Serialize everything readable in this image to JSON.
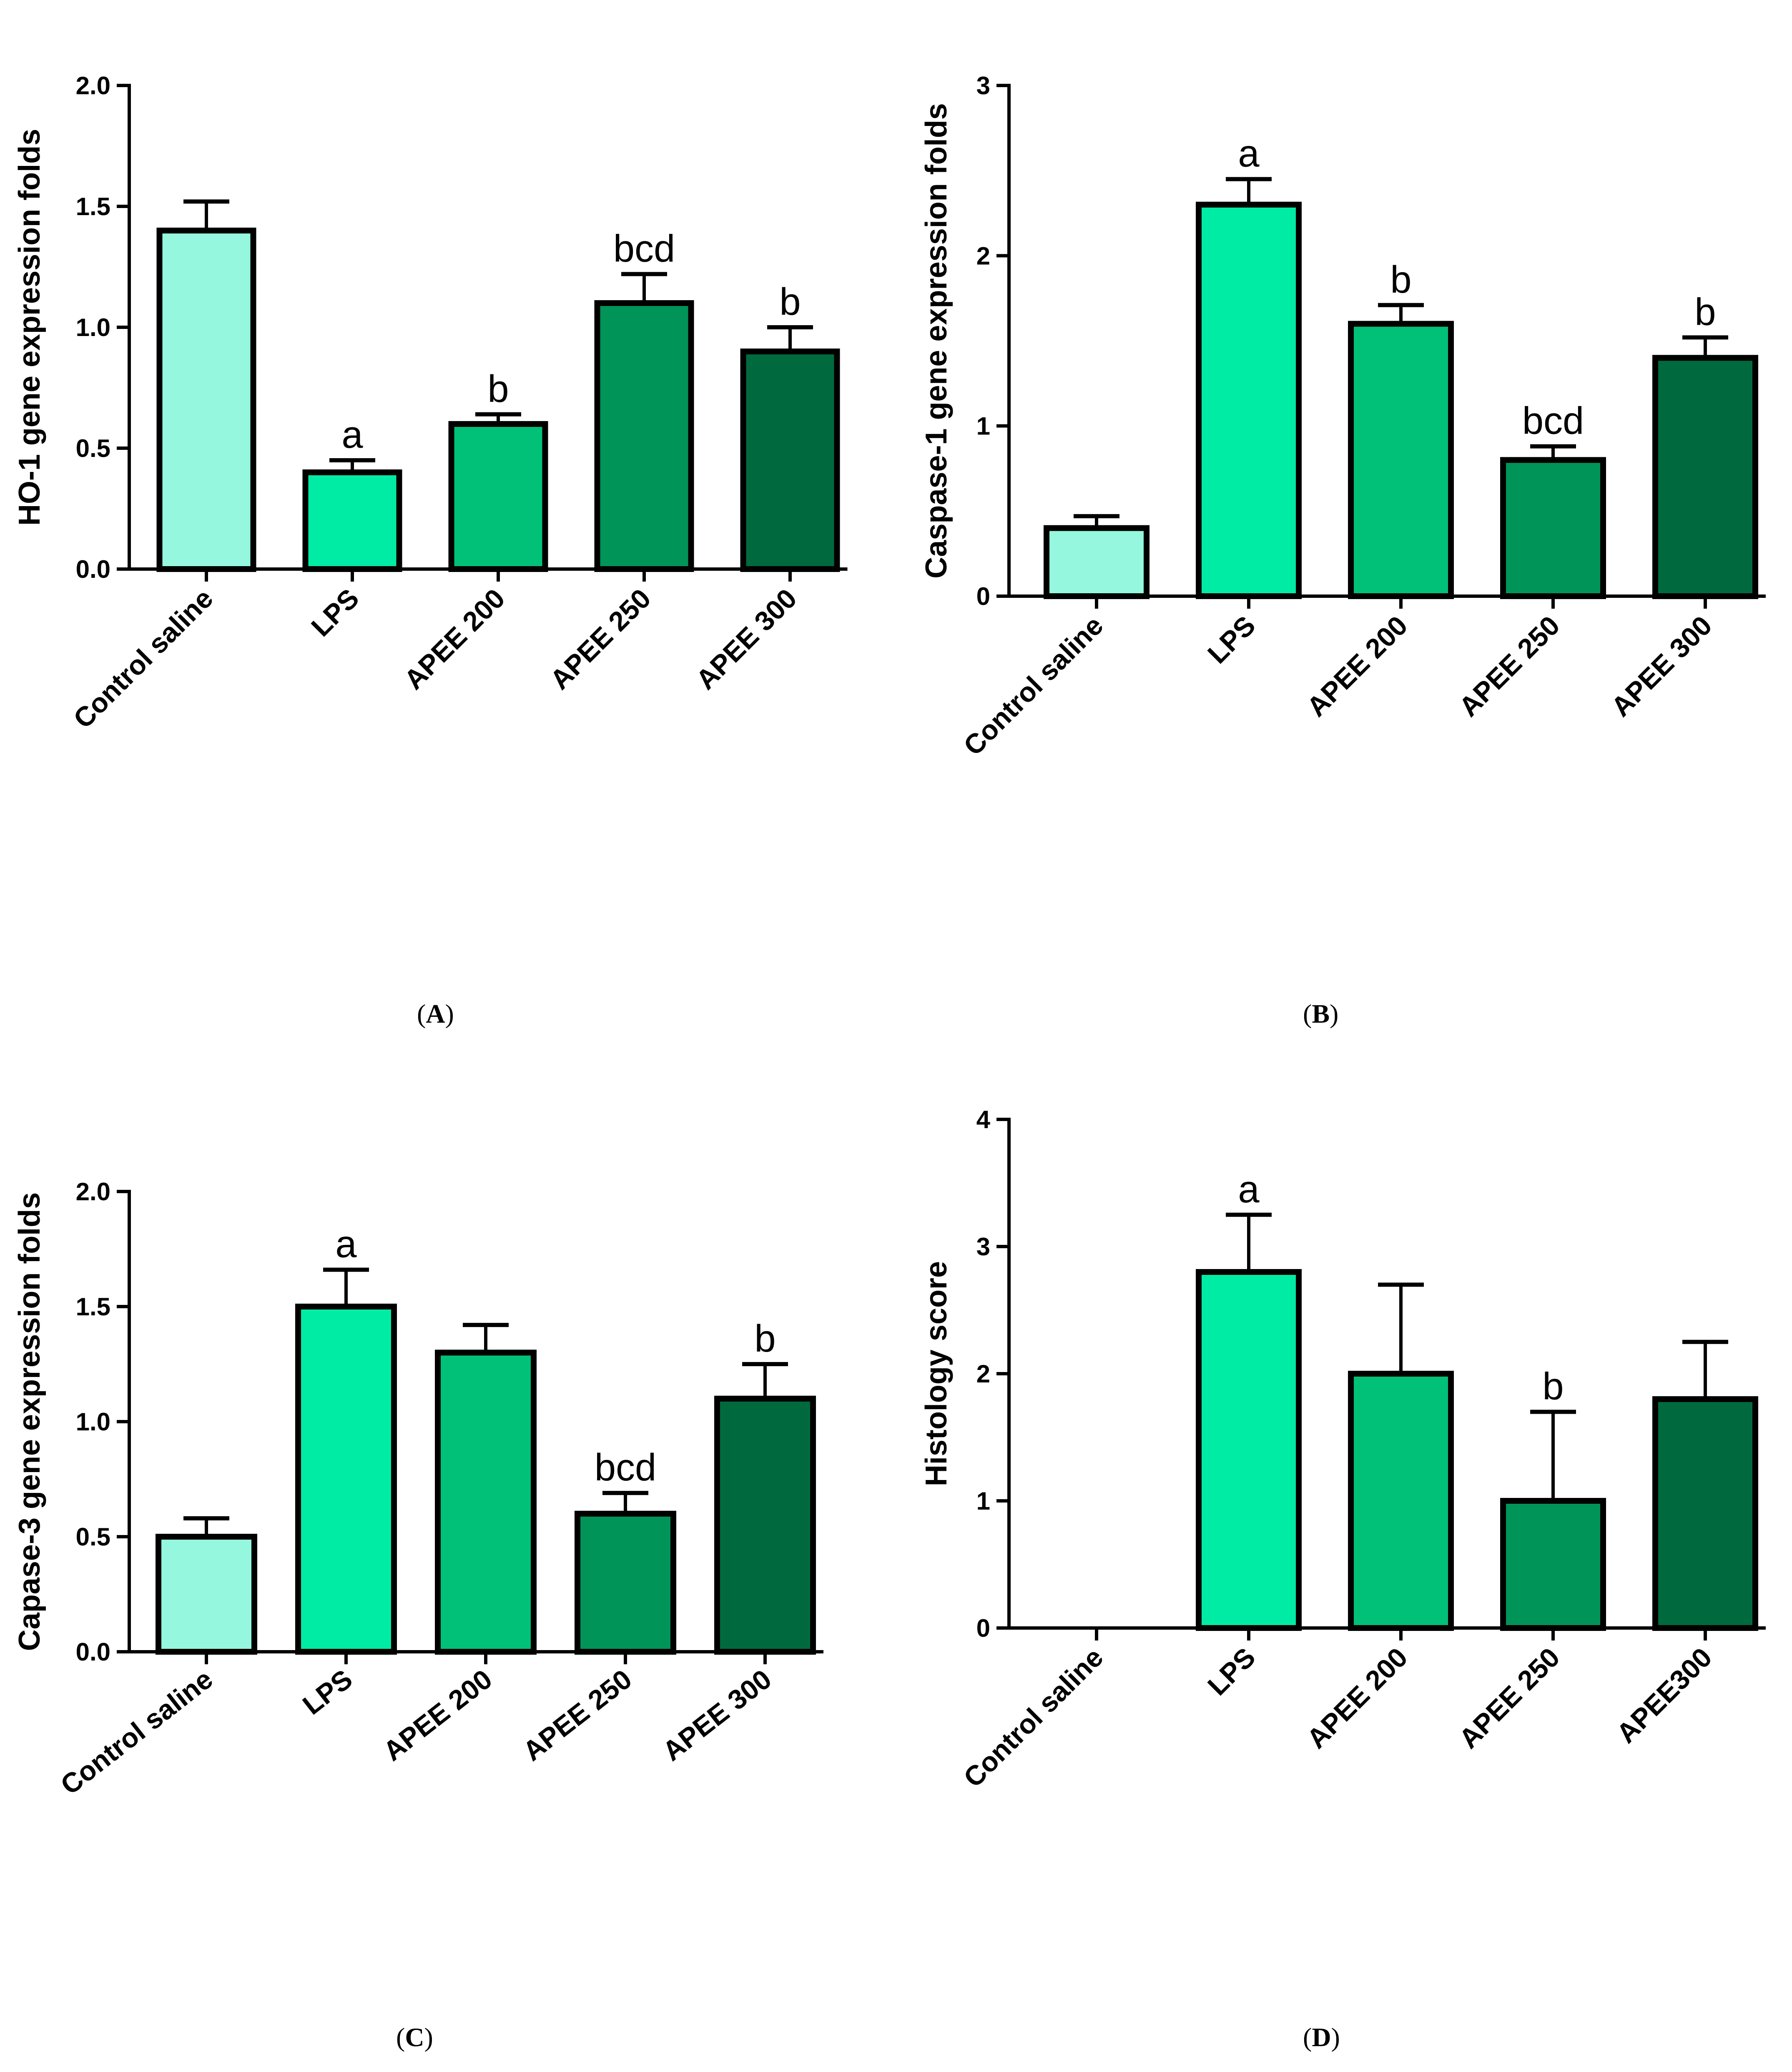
{
  "colors": {
    "control": "#94f7de",
    "lps": "#00eca5",
    "apee200": "#00c177",
    "apee250": "#019458",
    "apee300": "#006a3e",
    "axis": "#000000"
  },
  "chart_data": [
    {
      "panel": "(A)",
      "type": "bar",
      "title": "",
      "xlabel": "",
      "ylabel": "HO-1 gene expression folds",
      "ylim": [
        0,
        2.0
      ],
      "yticks": [
        "0.0",
        "0.5",
        "1.0",
        "1.5",
        "2.0"
      ],
      "categories": [
        "Control saline",
        "LPS",
        "APEE 200",
        "APEE 250",
        "APEE 300"
      ],
      "values": [
        1.4,
        0.4,
        0.6,
        1.1,
        0.9
      ],
      "errors": [
        0.12,
        0.05,
        0.04,
        0.12,
        0.1
      ],
      "annotations": [
        "",
        "a",
        "b",
        "bcd",
        "b"
      ]
    },
    {
      "panel": "(B)",
      "type": "bar",
      "title": "",
      "xlabel": "",
      "ylabel": "Caspase-1 gene expression folds",
      "ylim": [
        0,
        3
      ],
      "yticks": [
        "0",
        "1",
        "2",
        "3"
      ],
      "categories": [
        "Control saline",
        "LPS",
        "APEE 200",
        "APEE 250",
        "APEE 300"
      ],
      "values": [
        0.4,
        2.3,
        1.6,
        0.8,
        1.4
      ],
      "errors": [
        0.07,
        0.15,
        0.11,
        0.08,
        0.12
      ],
      "annotations": [
        "",
        "a",
        "b",
        "bcd",
        "b"
      ]
    },
    {
      "panel": "(C)",
      "type": "bar",
      "title": "",
      "xlabel": "",
      "ylabel": "Capase-3 gene expression folds",
      "ylim": [
        0,
        2.0
      ],
      "yticks": [
        "0.0",
        "0.5",
        "1.0",
        "1.5",
        "2.0"
      ],
      "categories": [
        "Control saline",
        "LPS",
        "APEE 200",
        "APEE 250",
        "APEE 300"
      ],
      "values": [
        0.5,
        1.5,
        1.3,
        0.6,
        1.1
      ],
      "errors": [
        0.08,
        0.16,
        0.12,
        0.09,
        0.15
      ],
      "annotations": [
        "",
        "a",
        "",
        "bcd",
        "b"
      ]
    },
    {
      "panel": "(D)",
      "type": "bar",
      "title": "",
      "xlabel": "",
      "ylabel": "Histology score",
      "ylim": [
        0,
        4
      ],
      "yticks": [
        "0",
        "1",
        "2",
        "3",
        "4"
      ],
      "categories": [
        "Control saline",
        "LPS",
        "APEE 200",
        "APEE 250",
        "APEE300"
      ],
      "values": [
        0,
        2.8,
        2.0,
        1.0,
        1.8
      ],
      "errors": [
        0,
        0.45,
        0.7,
        0.7,
        0.45
      ],
      "annotations": [
        "",
        "a",
        "",
        "b",
        ""
      ]
    }
  ]
}
